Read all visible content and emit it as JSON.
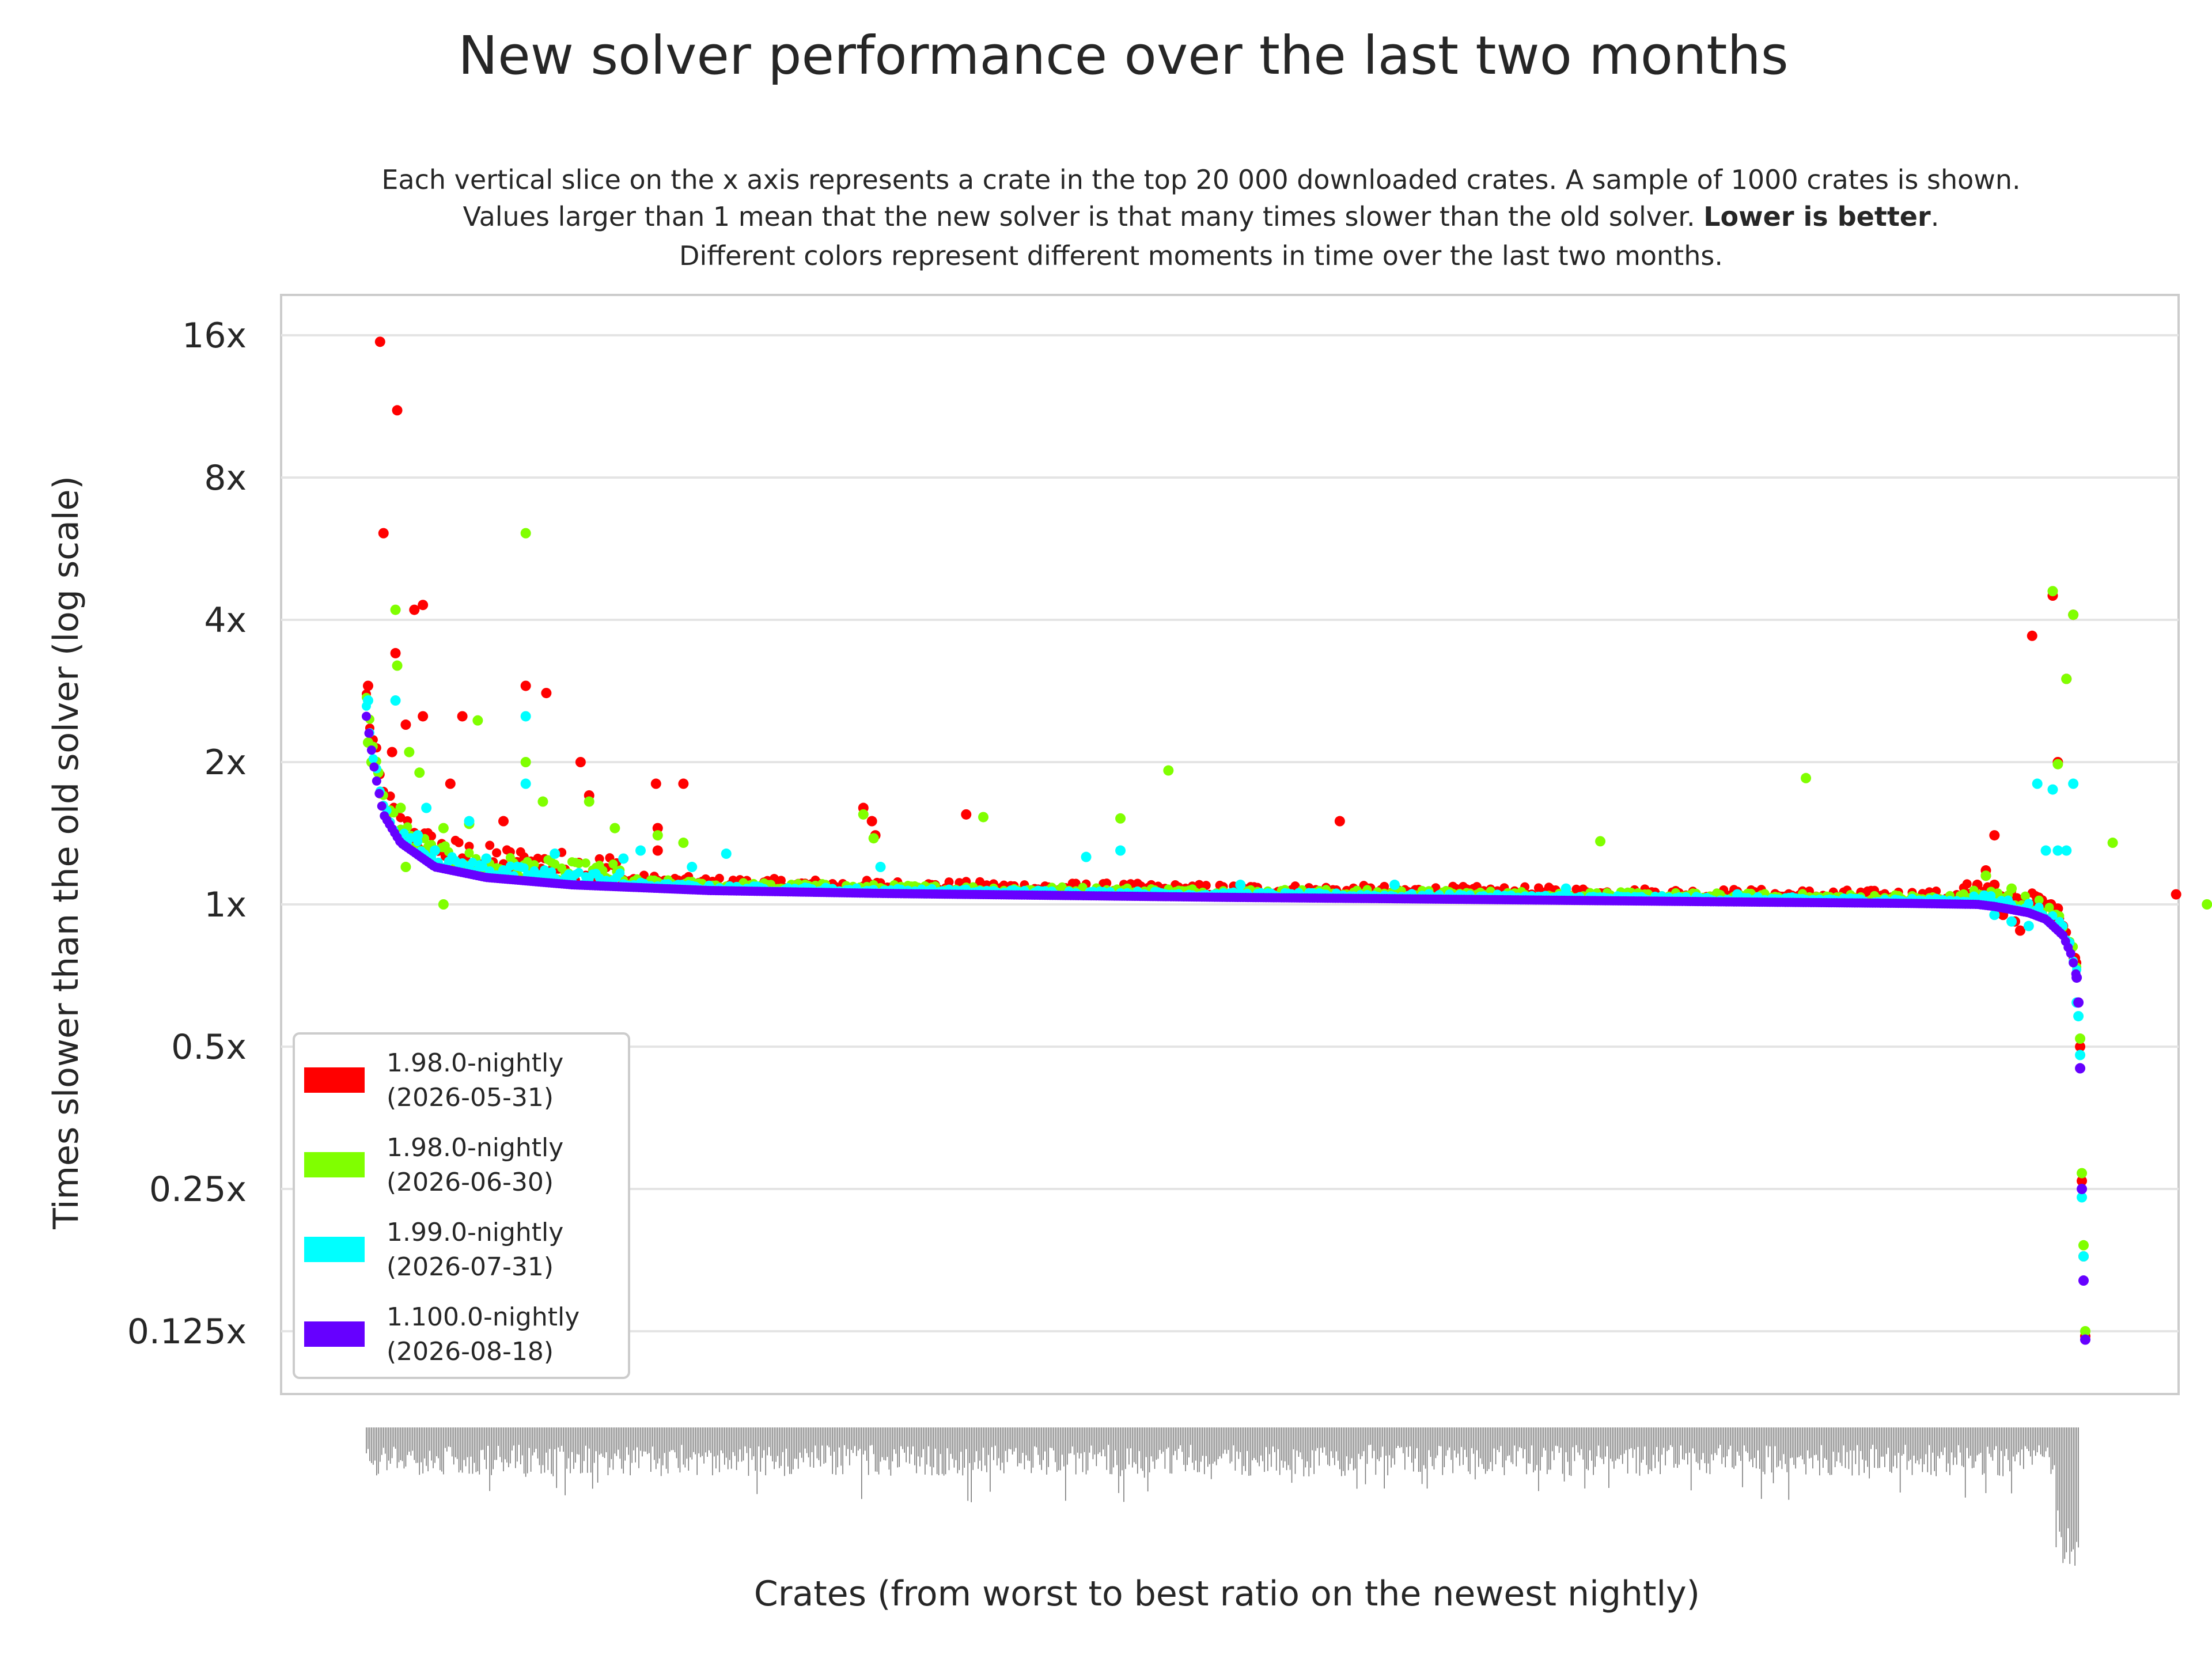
{
  "chart_data": {
    "type": "scatter",
    "title": "New solver performance over the last two months",
    "subtitle": [
      "Each vertical slice on the x axis represents a crate in the top 20 000 downloaded crates. A sample of 1000 crates is shown.",
      {
        "before": "Values larger than 1 mean that the new solver is that many times slower than the old solver. ",
        "bold": "Lower is better",
        "after": "."
      },
      "Different colors represent different moments in time over the last two months."
    ],
    "xlabel": "Crates (from worst to best ratio on the newest nightly)",
    "ylabel": "Times slower than the old solver (log scale)",
    "y_scale": "log2",
    "ylim": [
      0.1,
      20
    ],
    "y_ticks": [
      {
        "value": 16,
        "label": "16x"
      },
      {
        "value": 8,
        "label": "8x"
      },
      {
        "value": 4,
        "label": "4x"
      },
      {
        "value": 2,
        "label": "2x"
      },
      {
        "value": 1,
        "label": "1x"
      },
      {
        "value": 0.5,
        "label": "0.5x"
      },
      {
        "value": 0.25,
        "label": "0.25x"
      },
      {
        "value": 0.125,
        "label": "0.125x"
      }
    ],
    "grid": true,
    "legend_position": "lower-left",
    "crate_count": 1000,
    "series": [
      {
        "name": "1.98.0-nightly\n(2026-05-31)",
        "color": "#ff0000",
        "outliers": [
          [
            1,
            2.9
          ],
          [
            8,
            15.5
          ],
          [
            10,
            6.1
          ],
          [
            17,
            3.4
          ],
          [
            15,
            2.1
          ],
          [
            18,
            11.1
          ],
          [
            28,
            4.2
          ],
          [
            33,
            4.3
          ],
          [
            23,
            2.4
          ],
          [
            33,
            2.5
          ],
          [
            49,
            1.8
          ],
          [
            56,
            2.5
          ],
          [
            80,
            1.5
          ],
          [
            93,
            2.9
          ],
          [
            105,
            2.8
          ],
          [
            125,
            2.0
          ],
          [
            130,
            1.7
          ],
          [
            170,
            1.45
          ],
          [
            170,
            1.3
          ],
          [
            169,
            1.8
          ],
          [
            185,
            1.8
          ],
          [
            290,
            1.6
          ],
          [
            295,
            1.5
          ],
          [
            297,
            1.4
          ],
          [
            350,
            1.55
          ],
          [
            568,
            1.5
          ],
          [
            945,
            1.18
          ],
          [
            950,
            1.4
          ],
          [
            1056,
            1.05
          ],
          [
            940,
            1.1
          ],
          [
            943,
            1.05
          ],
          [
            945,
            1.15
          ],
          [
            950,
            1.1
          ],
          [
            963,
            1.03
          ],
          [
            973,
            1.0
          ],
          [
            955,
            0.95
          ],
          [
            962,
            0.92
          ],
          [
            965,
            0.88
          ],
          [
            983,
            1.0
          ],
          [
            985,
            0.95
          ],
          [
            990,
            0.9
          ],
          [
            995,
            0.81
          ],
          [
            997,
            0.77
          ],
          [
            987,
            0.98
          ],
          [
            972,
            3.7
          ],
          [
            984,
            4.5
          ],
          [
            987,
            2.0
          ],
          [
            992,
            3.0
          ],
          [
            996,
            4.1
          ],
          [
            1000,
            0.5
          ],
          [
            1001,
            0.26
          ],
          [
            1002,
            0.18
          ],
          [
            1003,
            0.122
          ]
        ]
      },
      {
        "name": "1.98.0-nightly\n(2026-06-30)",
        "color": "#80ff00",
        "outliers": [
          [
            1,
            2.2
          ],
          [
            3,
            2.0
          ],
          [
            7,
            1.9
          ],
          [
            17,
            4.2
          ],
          [
            18,
            3.2
          ],
          [
            20,
            1.6
          ],
          [
            23,
            1.2
          ],
          [
            25,
            2.1
          ],
          [
            31,
            1.9
          ],
          [
            45,
            1.0
          ],
          [
            35,
            1.3
          ],
          [
            45,
            1.45
          ],
          [
            60,
            1.48
          ],
          [
            65,
            2.45
          ],
          [
            93,
            6.1
          ],
          [
            93,
            2.0
          ],
          [
            103,
            1.65
          ],
          [
            130,
            1.65
          ],
          [
            145,
            1.45
          ],
          [
            170,
            1.4
          ],
          [
            185,
            1.35
          ],
          [
            290,
            1.55
          ],
          [
            296,
            1.38
          ],
          [
            360,
            1.53
          ],
          [
            440,
            1.52
          ],
          [
            468,
            1.92
          ],
          [
            720,
            1.36
          ],
          [
            840,
            1.85
          ],
          [
            1019,
            1.35
          ],
          [
            1074,
            1.0
          ],
          [
            945,
            1.15
          ],
          [
            960,
            1.08
          ],
          [
            984,
            4.6
          ],
          [
            987,
            1.98
          ],
          [
            992,
            3.0
          ],
          [
            996,
            4.1
          ],
          [
            1000,
            0.52
          ],
          [
            1001,
            0.27
          ],
          [
            1002,
            0.19
          ],
          [
            1003,
            0.125
          ]
        ]
      },
      {
        "name": "1.99.0-nightly\n(2026-07-31)",
        "color": "#00ffff",
        "outliers": [
          [
            1,
            2.7
          ],
          [
            17,
            2.7
          ],
          [
            30,
            1.4
          ],
          [
            35,
            1.6
          ],
          [
            40,
            1.3
          ],
          [
            60,
            1.5
          ],
          [
            70,
            1.25
          ],
          [
            80,
            1.18
          ],
          [
            93,
            2.5
          ],
          [
            93,
            1.8
          ],
          [
            110,
            1.28
          ],
          [
            150,
            1.25
          ],
          [
            160,
            1.3
          ],
          [
            190,
            1.2
          ],
          [
            210,
            1.28
          ],
          [
            300,
            1.2
          ],
          [
            420,
            1.26
          ],
          [
            440,
            1.3
          ],
          [
            510,
            1.1
          ],
          [
            600,
            1.1
          ],
          [
            700,
            1.08
          ],
          [
            800,
            1.05
          ],
          [
            950,
            0.95
          ],
          [
            960,
            0.92
          ],
          [
            970,
            0.9
          ],
          [
            975,
            1.8
          ],
          [
            980,
            1.3
          ],
          [
            984,
            1.75
          ],
          [
            987,
            1.3
          ],
          [
            992,
            1.3
          ],
          [
            996,
            1.8
          ],
          [
            998,
            0.62
          ],
          [
            999,
            0.58
          ],
          [
            1000,
            0.48
          ],
          [
            1001,
            0.24
          ],
          [
            1002,
            0.18
          ]
        ]
      },
      {
        "name": "1.100.0-nightly\n(2026-08-18)",
        "color": "#6600ff",
        "anchors": [
          [
            0,
            2.5
          ],
          [
            5,
            1.9
          ],
          [
            10,
            1.55
          ],
          [
            20,
            1.35
          ],
          [
            40,
            1.2
          ],
          [
            70,
            1.14
          ],
          [
            120,
            1.1
          ],
          [
            200,
            1.07
          ],
          [
            300,
            1.055
          ],
          [
            400,
            1.045
          ],
          [
            500,
            1.035
          ],
          [
            600,
            1.028
          ],
          [
            700,
            1.02
          ],
          [
            800,
            1.012
          ],
          [
            900,
            1.005
          ],
          [
            940,
            1.0
          ],
          [
            950,
            0.99
          ],
          [
            960,
            0.975
          ],
          [
            970,
            0.96
          ],
          [
            980,
            0.93
          ],
          [
            990,
            0.86
          ],
          [
            995,
            0.78
          ],
          [
            998,
            0.7
          ],
          [
            999,
            0.62
          ],
          [
            1000,
            0.45
          ],
          [
            1001,
            0.25
          ],
          [
            1002,
            0.16
          ],
          [
            1003,
            0.12
          ]
        ]
      }
    ]
  }
}
